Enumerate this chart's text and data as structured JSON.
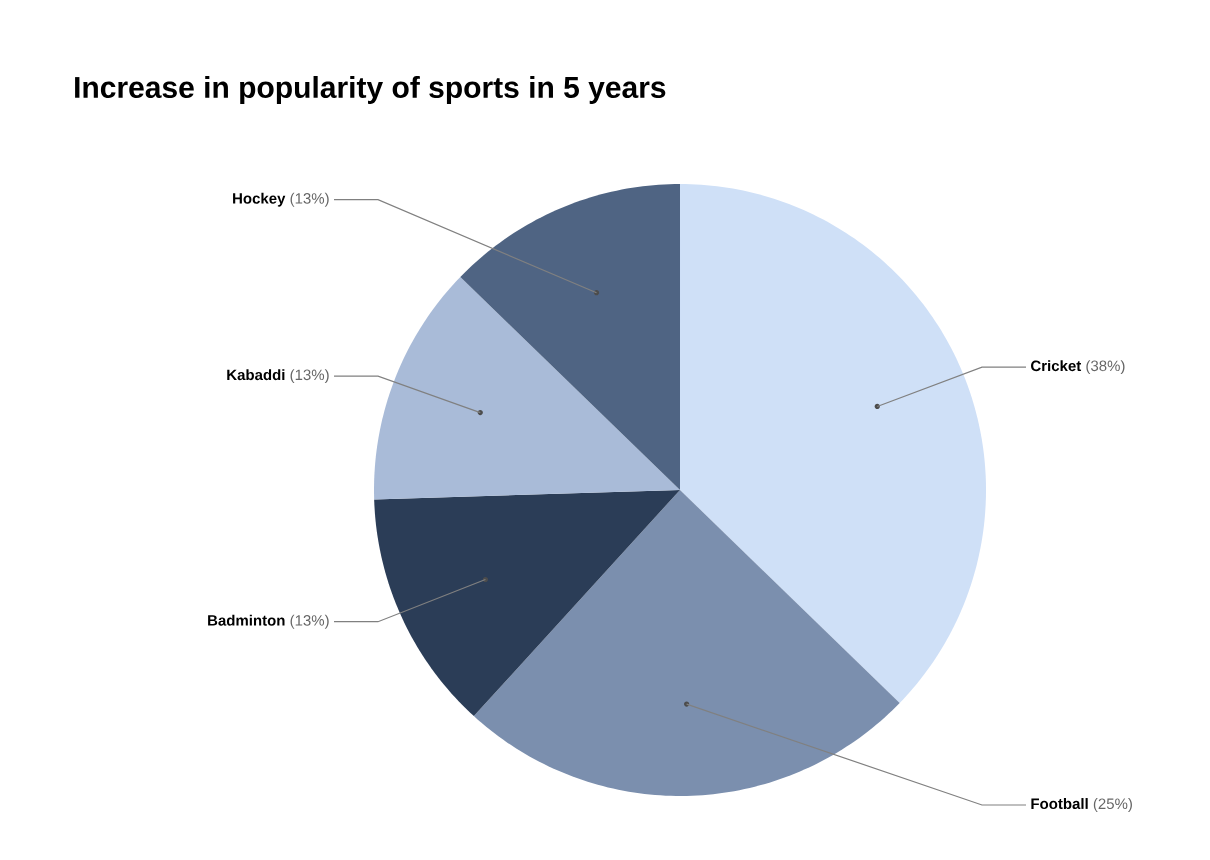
{
  "chart_data": {
    "type": "pie",
    "title": "Increase in popularity of sports in 5 years",
    "categories": [
      "Cricket",
      "Football",
      "Badminton",
      "Kabaddi",
      "Hockey"
    ],
    "values": [
      38,
      25,
      13,
      13,
      13
    ],
    "value_labels": [
      "(38%)",
      "(25%)",
      "(13%)",
      "(13%)",
      "(13%)"
    ],
    "colors": [
      "#cfe0f7",
      "#7b8fae",
      "#2b3d57",
      "#a9bbd8",
      "#4f6483"
    ]
  }
}
